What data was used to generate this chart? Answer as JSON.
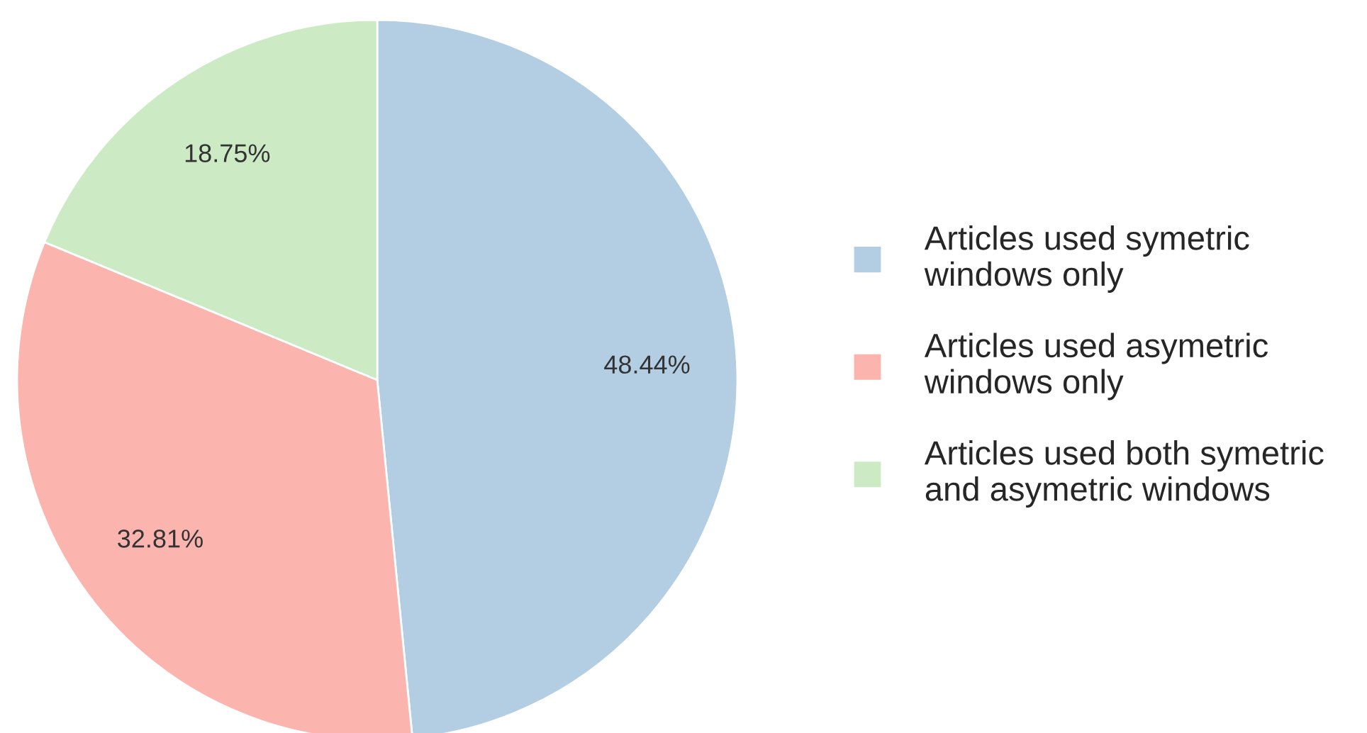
{
  "chart_data": {
    "type": "pie",
    "categories": [
      "Articles used symetric\nwindows only",
      "Articles used asymetric\nwindows only",
      "Articles used both symetric\nand asymetric windows"
    ],
    "values": [
      48.44,
      32.81,
      18.75
    ],
    "colors": [
      "#b3cde3",
      "#fbb4ae",
      "#ccebc5"
    ],
    "value_labels": [
      "48.44%",
      "32.81%",
      "18.75%"
    ],
    "legend": "right"
  }
}
